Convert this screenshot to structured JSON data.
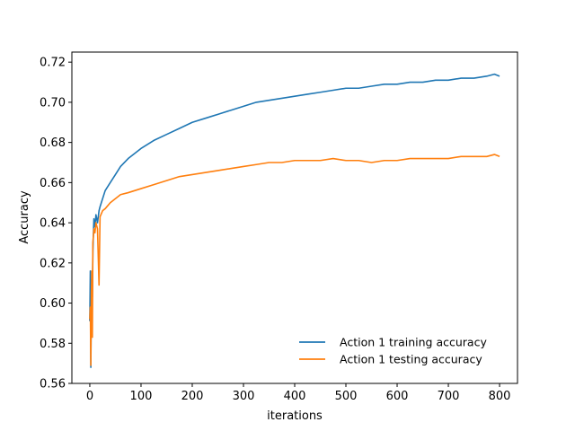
{
  "chart_data": {
    "type": "line",
    "title": "",
    "xlabel": "iterations",
    "ylabel": "Accuracy",
    "xlim": [
      -35,
      835
    ],
    "ylim": [
      0.56,
      0.725
    ],
    "x_ticks": [
      0,
      100,
      200,
      300,
      400,
      500,
      600,
      700,
      800
    ],
    "x_tick_labels": [
      "0",
      "100",
      "200",
      "300",
      "400",
      "500",
      "600",
      "700",
      "800"
    ],
    "y_ticks": [
      0.56,
      0.58,
      0.6,
      0.62,
      0.64,
      0.66,
      0.68,
      0.7,
      0.72
    ],
    "y_tick_labels": [
      "0.56",
      "0.58",
      "0.60",
      "0.62",
      "0.64",
      "0.66",
      "0.68",
      "0.70",
      "0.72"
    ],
    "grid": false,
    "legend_position": "lower-right",
    "series": [
      {
        "name": "Action 1 training accuracy",
        "color": "#1f77b4",
        "x": [
          0,
          1,
          2,
          3,
          4,
          5,
          6,
          8,
          10,
          12,
          15,
          18,
          20,
          25,
          30,
          40,
          50,
          60,
          75,
          100,
          125,
          150,
          175,
          200,
          225,
          250,
          275,
          300,
          325,
          350,
          375,
          400,
          425,
          450,
          475,
          500,
          525,
          550,
          575,
          600,
          625,
          650,
          675,
          700,
          725,
          750,
          775,
          790,
          800
        ],
        "y": [
          0.591,
          0.616,
          0.568,
          0.6,
          0.612,
          0.603,
          0.626,
          0.642,
          0.638,
          0.644,
          0.64,
          0.646,
          0.648,
          0.652,
          0.656,
          0.66,
          0.664,
          0.668,
          0.672,
          0.677,
          0.681,
          0.684,
          0.687,
          0.69,
          0.692,
          0.694,
          0.696,
          0.698,
          0.7,
          0.701,
          0.702,
          0.703,
          0.704,
          0.705,
          0.706,
          0.707,
          0.707,
          0.708,
          0.709,
          0.709,
          0.71,
          0.71,
          0.711,
          0.711,
          0.712,
          0.712,
          0.713,
          0.714,
          0.713
        ]
      },
      {
        "name": "Action 1 testing accuracy",
        "color": "#ff7f0e",
        "x": [
          0,
          1,
          2,
          3,
          4,
          5,
          6,
          8,
          10,
          12,
          15,
          18,
          20,
          25,
          30,
          40,
          50,
          60,
          75,
          100,
          125,
          150,
          175,
          200,
          225,
          250,
          275,
          300,
          325,
          350,
          375,
          400,
          425,
          450,
          475,
          500,
          525,
          550,
          575,
          600,
          625,
          650,
          675,
          700,
          725,
          750,
          775,
          790,
          800
        ],
        "y": [
          0.592,
          0.598,
          0.569,
          0.605,
          0.616,
          0.583,
          0.63,
          0.637,
          0.635,
          0.64,
          0.637,
          0.609,
          0.643,
          0.646,
          0.647,
          0.65,
          0.652,
          0.654,
          0.655,
          0.657,
          0.659,
          0.661,
          0.663,
          0.664,
          0.665,
          0.666,
          0.667,
          0.668,
          0.669,
          0.67,
          0.67,
          0.671,
          0.671,
          0.671,
          0.672,
          0.671,
          0.671,
          0.67,
          0.671,
          0.671,
          0.672,
          0.672,
          0.672,
          0.672,
          0.673,
          0.673,
          0.673,
          0.674,
          0.673
        ]
      }
    ]
  }
}
